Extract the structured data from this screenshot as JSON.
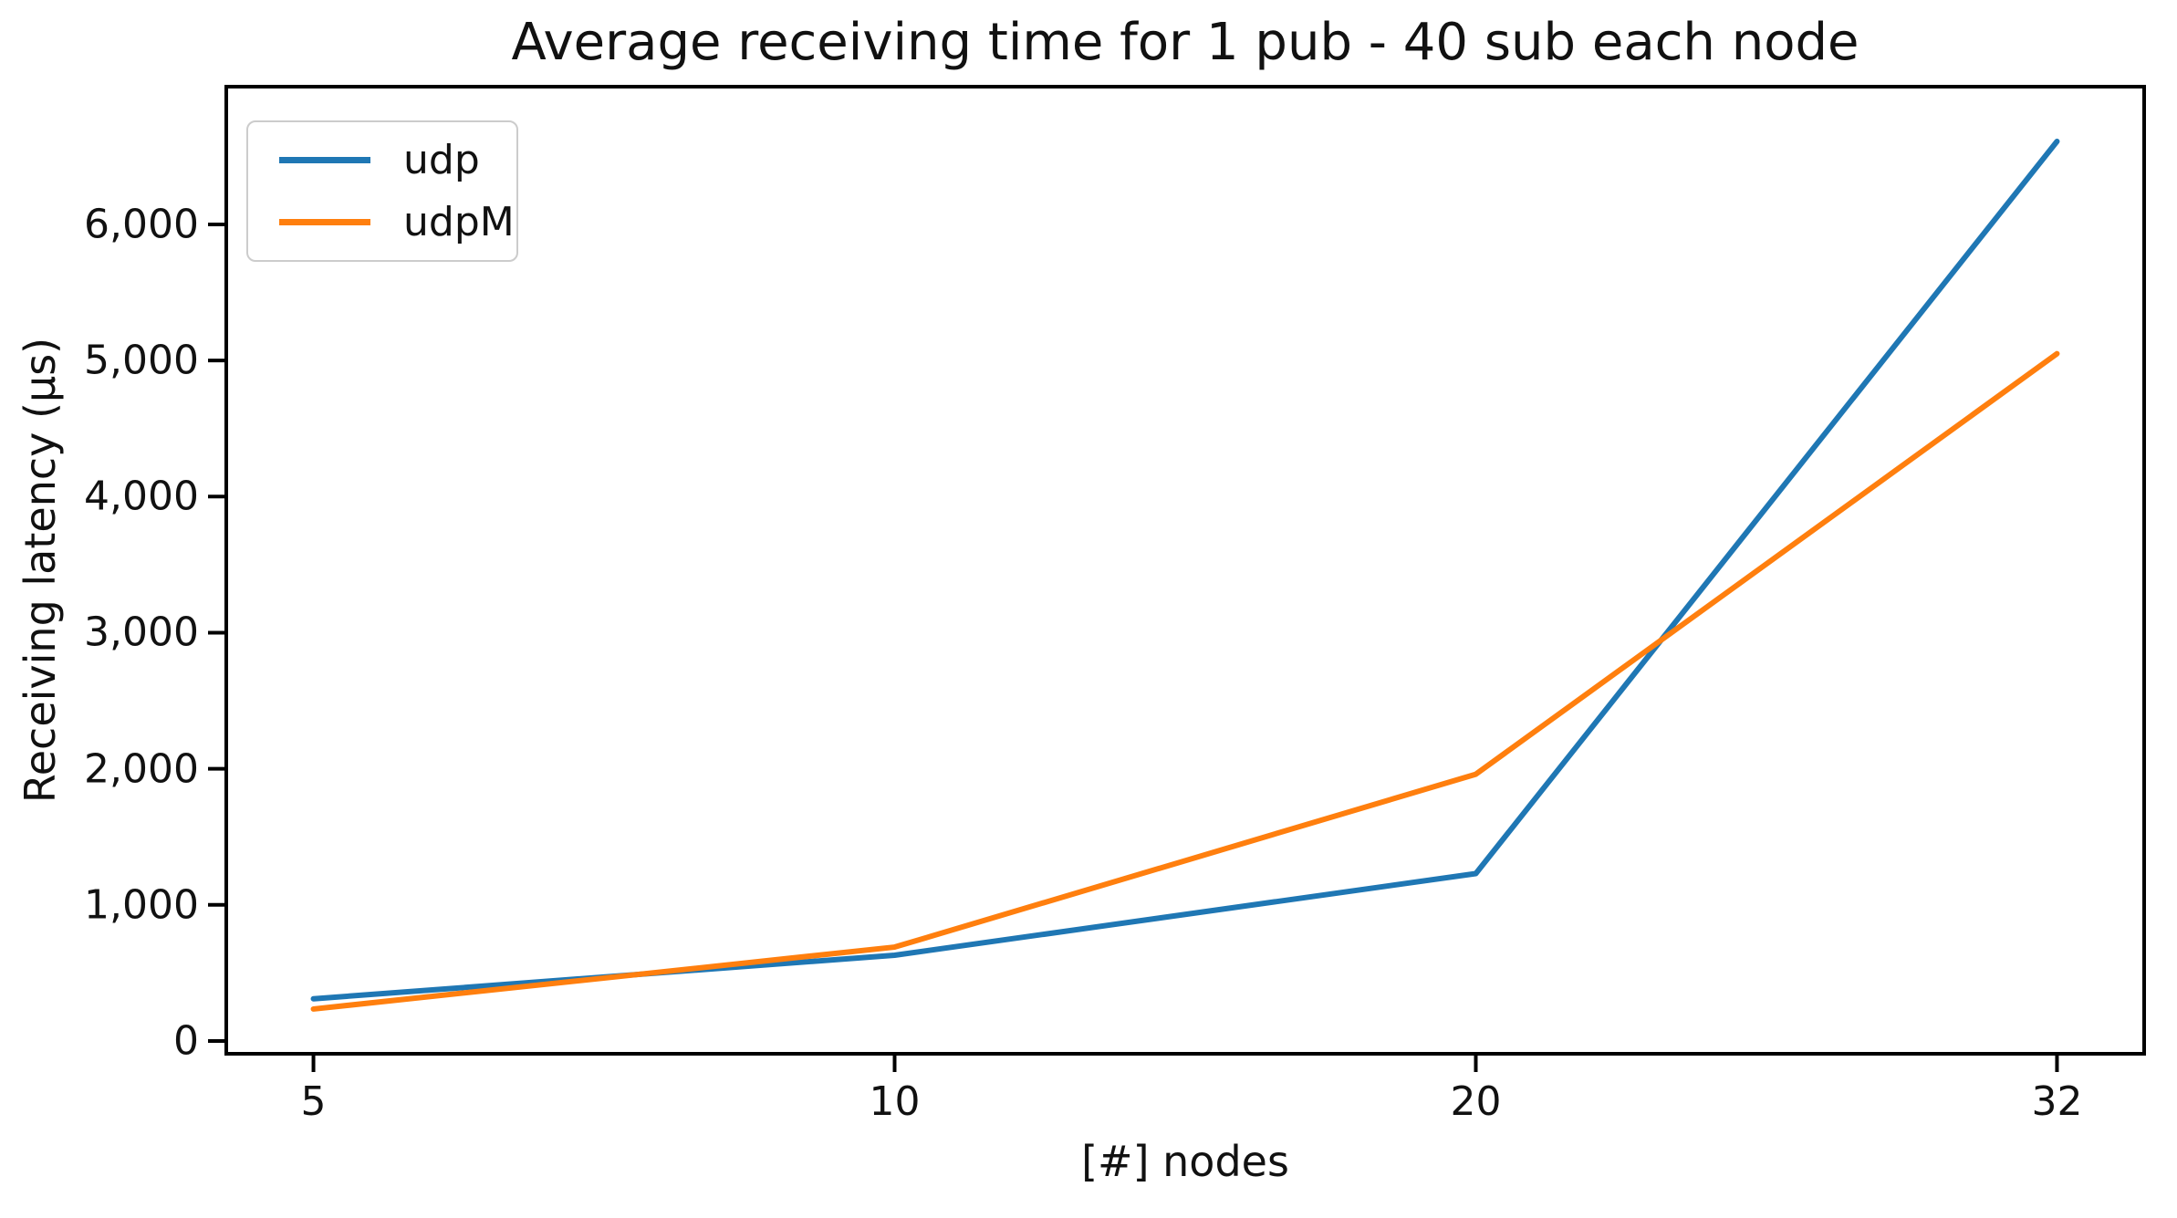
{
  "chart_data": {
    "type": "line",
    "title": "Average receiving time for 1 pub - 40 sub each node",
    "xlabel": "[#] nodes",
    "ylabel": "Receiving latency (μs)",
    "categories": [
      "5",
      "10",
      "20",
      "32"
    ],
    "series": [
      {
        "name": "udp",
        "color": "#1f77b4",
        "values": [
          310,
          630,
          1230,
          6610
        ]
      },
      {
        "name": "udpM",
        "color": "#ff7f0e",
        "values": [
          235,
          690,
          1960,
          5050
        ]
      }
    ],
    "y_ticks": [
      0,
      1000,
      2000,
      3000,
      4000,
      5000,
      6000
    ],
    "y_tick_labels": [
      "0",
      "1,000",
      "2,000",
      "3,000",
      "4,000",
      "5,000",
      "6,000"
    ],
    "ylim": [
      -94,
      7012
    ],
    "xlim_index": [
      -0.15,
      3.15
    ],
    "grid": false,
    "legend_position": "upper left",
    "x_equal_spacing": true
  },
  "colors": {
    "background": "#ffffff",
    "axis": "#000000",
    "text": "#111111",
    "legend_border": "#cccccc",
    "udp_line": "#1f77b4",
    "udpM_line": "#ff7f0e"
  }
}
